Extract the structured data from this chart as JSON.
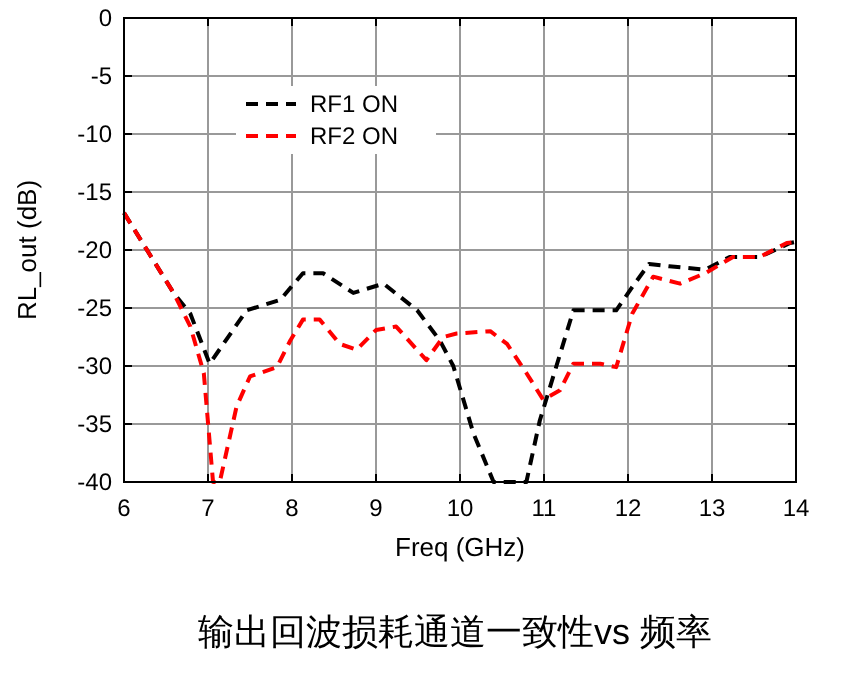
{
  "chart_data": {
    "type": "line",
    "xlabel": "Freq (GHz)",
    "ylabel": "RL_out (dB)",
    "annotations": [
      "输出回波损耗通道一致性vs 频率"
    ],
    "xlim": [
      6,
      14
    ],
    "ylim": [
      -40,
      0
    ],
    "xticks": [
      6,
      7,
      8,
      9,
      10,
      11,
      12,
      13,
      14
    ],
    "yticks": [
      0,
      -5,
      -10,
      -15,
      -20,
      -25,
      -30,
      -35,
      -40
    ],
    "grid": true,
    "legend": "top left",
    "line_style": "dashed",
    "marker": "none",
    "series": [
      {
        "name": "RF1 ON",
        "color": "#000000",
        "x": [
          6,
          6.59,
          6.79,
          7.02,
          7.46,
          7.86,
          8.13,
          8.37,
          8.73,
          9.09,
          9.49,
          9.76,
          9.92,
          10.16,
          10.4,
          10.79,
          10.95,
          11.35,
          11.86,
          12.05,
          12.25,
          12.49,
          12.92,
          13.21,
          13.57,
          13.93,
          14
        ],
        "values": [
          -16.8,
          -23.7,
          -25.5,
          -29.8,
          -25.2,
          -24.3,
          -22,
          -22,
          -23.7,
          -22.9,
          -25.2,
          -27.8,
          -30,
          -35.8,
          -40,
          -40,
          -34.7,
          -25.2,
          -25.2,
          -23.2,
          -21.2,
          -21.4,
          -21.7,
          -20.6,
          -20.6,
          -19.4,
          -19.3
        ]
      },
      {
        "name": "RF2 ON",
        "color": "#ff0000",
        "x": [
          6,
          6.59,
          6.79,
          6.95,
          7.06,
          7.14,
          7.34,
          7.5,
          7.82,
          7.98,
          8.13,
          8.33,
          8.57,
          8.77,
          9,
          9.24,
          9.6,
          9.8,
          9.96,
          10.36,
          10.56,
          10.79,
          10.99,
          11.19,
          11.35,
          11.67,
          11.86,
          12.05,
          12.3,
          12.62,
          12.92,
          13.25,
          13.57,
          13.89,
          14
        ],
        "values": [
          -16.8,
          -23.7,
          -26.6,
          -30.6,
          -40,
          -40,
          -33.5,
          -30.9,
          -30.1,
          -27.8,
          -26,
          -26,
          -28.1,
          -28.6,
          -26.9,
          -26.6,
          -29.5,
          -27.5,
          -27.2,
          -27,
          -28.1,
          -30.6,
          -32.9,
          -32.1,
          -29.8,
          -29.8,
          -30.1,
          -25.5,
          -22.3,
          -22.9,
          -22,
          -20.6,
          -20.6,
          -19.4,
          -19.3
        ]
      }
    ]
  }
}
